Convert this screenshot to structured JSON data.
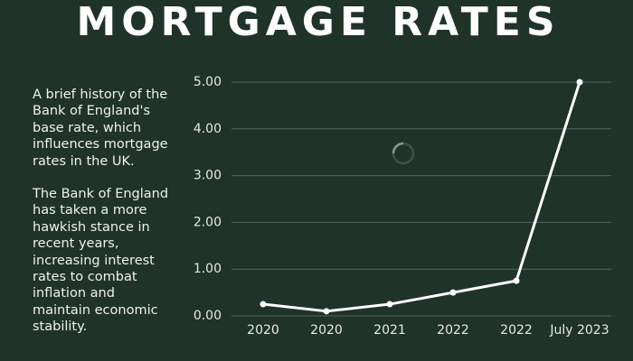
{
  "chart_data": {
    "type": "line",
    "title": "MORTGAGE RATES",
    "categories": [
      "2020",
      "2020",
      "2021",
      "2022",
      "2022",
      "July 2023"
    ],
    "values": [
      0.25,
      0.1,
      0.25,
      0.5,
      0.75,
      5.0
    ],
    "color": "#ffffff",
    "ylim": [
      0,
      5
    ],
    "yticks": [
      {
        "value": 0,
        "label": "0.00"
      },
      {
        "value": 1,
        "label": "1.00"
      },
      {
        "value": 2,
        "label": "2.00"
      },
      {
        "value": 3,
        "label": "3.00"
      },
      {
        "value": 4,
        "label": "4.00"
      },
      {
        "value": 5,
        "label": "5.00"
      }
    ],
    "grid": true
  },
  "description": [
    [
      "A brief history of the",
      "Bank of England's",
      "base rate, which",
      "influences mortgage",
      "rates in the UK."
    ],
    [
      "The Bank of England",
      "has taken a more",
      "hawkish stance in",
      "recent years,",
      "increasing interest",
      "rates to combat",
      "inflation and",
      "maintain economic",
      "stability."
    ]
  ]
}
